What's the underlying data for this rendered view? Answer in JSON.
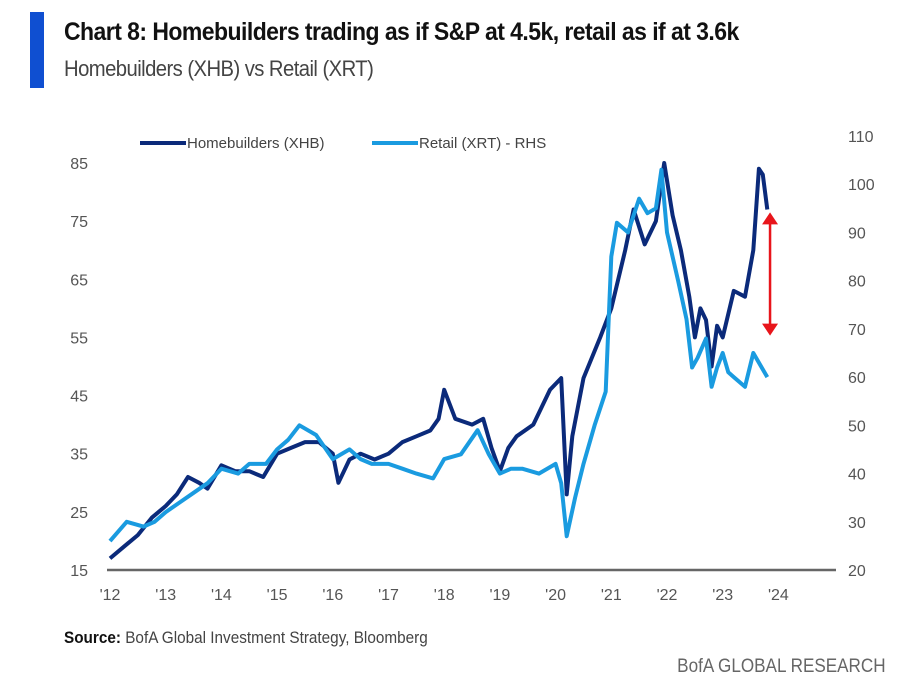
{
  "chart_data": {
    "type": "line",
    "title": "Chart 8: Homebuilders trading as if S&P at 4.5k, retail as if at 3.6k",
    "subtitle": "Homebuilders (XHB) vs Retail (XRT)",
    "x_ticks": [
      "'12",
      "'13",
      "'14",
      "'15",
      "'16",
      "'17",
      "'18",
      "'19",
      "'20",
      "'21",
      "'22",
      "'23",
      "'24"
    ],
    "xlim": [
      2012,
      2025.05
    ],
    "y_left": {
      "ticks": [
        15,
        25,
        35,
        45,
        55,
        65,
        75,
        85
      ],
      "ylim": [
        15,
        85
      ]
    },
    "y_right": {
      "ticks": [
        20,
        30,
        40,
        50,
        60,
        70,
        80,
        90,
        100,
        110
      ],
      "ylim": [
        20,
        110
      ]
    },
    "grid": false,
    "legend_position": "top-left",
    "series": [
      {
        "name": "Homebuilders (XHB)",
        "axis": "left",
        "color": "#0b2a7a",
        "x": [
          2012.0,
          2012.25,
          2012.5,
          2012.75,
          2013.0,
          2013.2,
          2013.4,
          2013.6,
          2013.75,
          2014.0,
          2014.25,
          2014.5,
          2014.75,
          2015.0,
          2015.25,
          2015.5,
          2015.75,
          2016.0,
          2016.1,
          2016.3,
          2016.5,
          2016.75,
          2017.0,
          2017.25,
          2017.5,
          2017.75,
          2017.9,
          2018.0,
          2018.2,
          2018.5,
          2018.7,
          2018.85,
          2019.0,
          2019.15,
          2019.3,
          2019.6,
          2019.9,
          2020.1,
          2020.2,
          2020.3,
          2020.5,
          2020.8,
          2021.0,
          2021.25,
          2021.4,
          2021.6,
          2021.8,
          2021.95,
          2022.1,
          2022.25,
          2022.4,
          2022.5,
          2022.6,
          2022.7,
          2022.8,
          2022.9,
          2023.0,
          2023.2,
          2023.4,
          2023.55,
          2023.65,
          2023.72,
          2023.8
        ],
        "y": [
          17,
          19,
          21,
          24,
          26,
          28,
          31,
          30,
          29,
          33,
          32,
          32,
          31,
          35,
          36,
          37,
          37,
          35,
          30,
          34,
          35,
          34,
          35,
          37,
          38,
          39,
          41,
          46,
          41,
          40,
          41,
          36,
          32,
          36,
          38,
          40,
          46,
          48,
          28,
          38,
          48,
          55,
          60,
          70,
          77,
          71,
          75,
          85,
          76,
          70,
          62,
          55,
          60,
          58,
          50,
          57,
          55,
          63,
          62,
          70,
          84,
          83,
          77
        ]
      },
      {
        "name": "Retail (XRT) - RHS",
        "axis": "right",
        "color": "#1a9be0",
        "x": [
          2012.0,
          2012.3,
          2012.6,
          2012.8,
          2013.0,
          2013.25,
          2013.5,
          2013.75,
          2014.0,
          2014.3,
          2014.5,
          2014.8,
          2015.0,
          2015.2,
          2015.4,
          2015.7,
          2016.0,
          2016.3,
          2016.5,
          2016.7,
          2017.0,
          2017.25,
          2017.5,
          2017.8,
          2018.0,
          2018.3,
          2018.6,
          2018.8,
          2019.0,
          2019.2,
          2019.4,
          2019.7,
          2020.0,
          2020.1,
          2020.2,
          2020.35,
          2020.5,
          2020.7,
          2020.9,
          2021.0,
          2021.1,
          2021.3,
          2021.5,
          2021.65,
          2021.8,
          2021.9,
          2022.0,
          2022.2,
          2022.35,
          2022.45,
          2022.55,
          2022.7,
          2022.8,
          2022.9,
          2023.0,
          2023.1,
          2023.2,
          2023.4,
          2023.55,
          2023.7,
          2023.8
        ],
        "y": [
          26,
          30,
          29,
          30,
          32,
          34,
          36,
          38,
          41,
          40,
          42,
          42,
          45,
          47,
          50,
          48,
          43,
          45,
          43,
          42,
          42,
          41,
          40,
          39,
          43,
          44,
          49,
          44,
          40,
          41,
          41,
          40,
          42,
          38,
          27,
          35,
          42,
          50,
          57,
          85,
          92,
          90,
          97,
          94,
          95,
          103,
          90,
          80,
          72,
          62,
          64,
          68,
          58,
          62,
          65,
          61,
          60,
          58,
          65,
          62,
          60
        ]
      }
    ],
    "annotation": {
      "type": "double-arrow",
      "color": "#e8151b",
      "x": 2023.85,
      "from_left_y": 76.5,
      "to_left_y": 55.3
    }
  },
  "source_label": "Source:",
  "source_text": "BofA Global Investment Strategy, Bloomberg",
  "footer": "BofA GLOBAL RESEARCH"
}
